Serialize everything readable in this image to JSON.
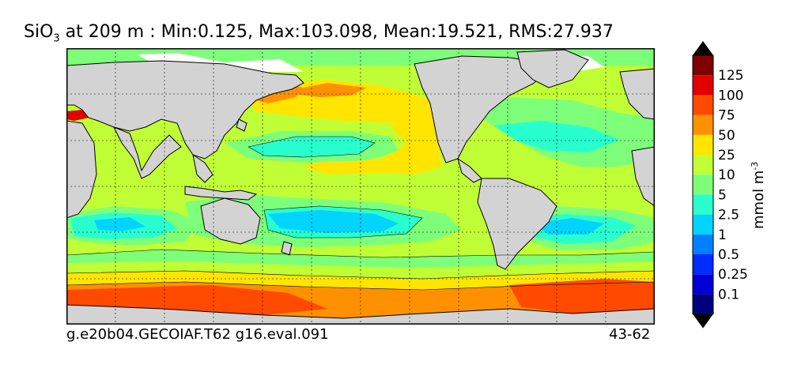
{
  "title": {
    "variable": "SiO",
    "subscript": "3",
    "rest": " at 209 m : Min:0.125, Max:103.098, Mean:19.521, RMS:27.937"
  },
  "footer": {
    "left": "g.e20b04.GECOIAF.T62 g16.eval.091",
    "right": "43-62"
  },
  "colorbar": {
    "units_base": "mmol m",
    "units_exp": "-3",
    "ticks": [
      "0.1",
      "0.25",
      "0.5",
      "1",
      "2.5",
      "5",
      "10",
      "25",
      "50",
      "75",
      "100",
      "125"
    ],
    "colors": [
      "#00007f",
      "#0000d5",
      "#002cff",
      "#0080ff",
      "#00d4ff",
      "#29ffce",
      "#7dff7a",
      "#c0ff36",
      "#ffe500",
      "#ff9100",
      "#ff4a00",
      "#e30000",
      "#7f0000"
    ],
    "under_color": "#00007f",
    "over_color": "#000000",
    "extend": "both"
  },
  "map": {
    "projection": "cylindrical",
    "grid": true,
    "land_color": "#d3d3d3",
    "no_data_color": "#ffffff"
  }
}
